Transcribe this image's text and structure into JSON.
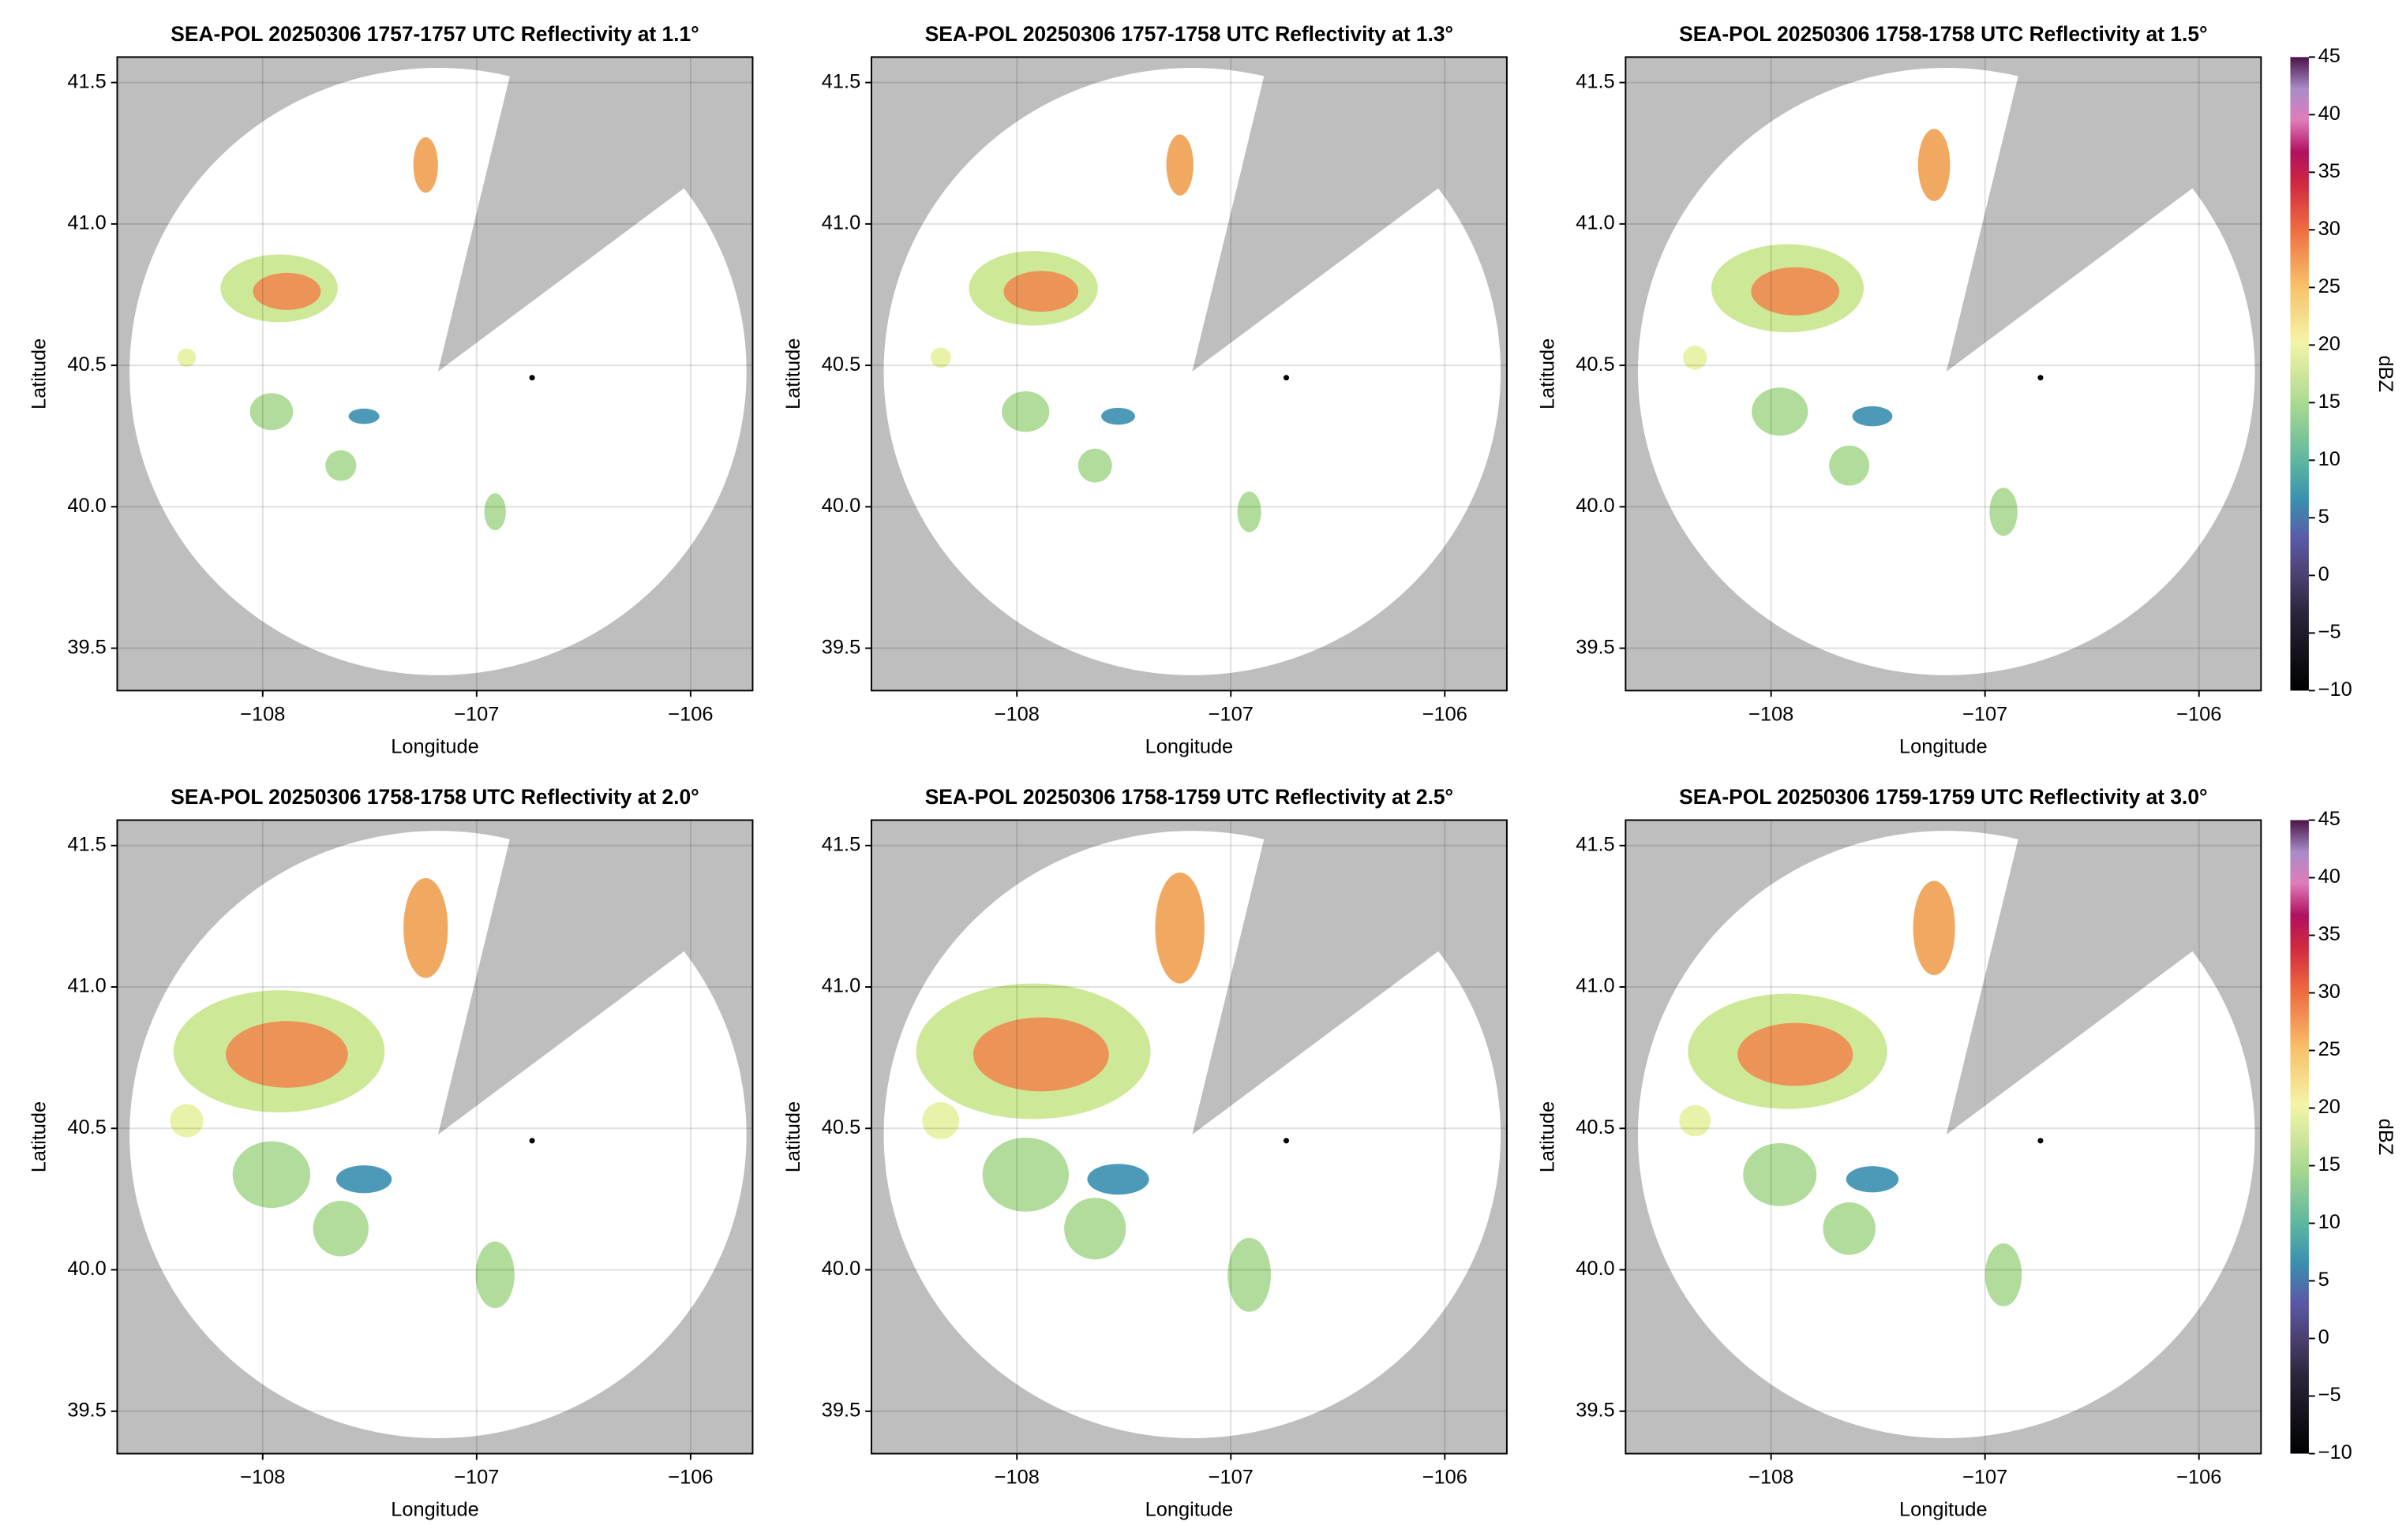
{
  "chart_data": [
    {
      "type": "ppi",
      "title": "SEA-POL 20250306 1757-1757 UTC Reflectivity at 1.1°",
      "xlabel": "Longitude",
      "ylabel": "Latitude",
      "xlim": [
        -108.68,
        -105.71
      ],
      "ylim": [
        39.35,
        41.59
      ],
      "xticks": [
        {
          "value": -108,
          "label": "−108"
        },
        {
          "value": -107,
          "label": "−107"
        },
        {
          "value": -106,
          "label": "−106"
        }
      ],
      "yticks": [
        39.5,
        {
          "value": 40,
          "label": "40.0"
        },
        40.5,
        {
          "value": 41,
          "label": "41.0"
        },
        41.5
      ],
      "grid": true
    },
    {
      "type": "ppi",
      "title": "SEA-POL 20250306 1757-1758 UTC Reflectivity at 1.3°",
      "xlabel": "Longitude",
      "ylabel": "Latitude",
      "xlim": [
        -108.68,
        -105.71
      ],
      "ylim": [
        39.35,
        41.59
      ],
      "xticks": [
        {
          "value": -108,
          "label": "−108"
        },
        {
          "value": -107,
          "label": "−107"
        },
        {
          "value": -106,
          "label": "−106"
        }
      ],
      "yticks": [
        39.5,
        {
          "value": 40,
          "label": "40.0"
        },
        40.5,
        {
          "value": 41,
          "label": "41.0"
        },
        41.5
      ],
      "grid": true
    },
    {
      "type": "ppi",
      "title": "SEA-POL 20250306 1758-1758 UTC Reflectivity at 1.5°",
      "xlabel": "Longitude",
      "ylabel": "Latitude",
      "xlim": [
        -108.68,
        -105.71
      ],
      "ylim": [
        39.35,
        41.59
      ],
      "xticks": [
        {
          "value": -108,
          "label": "−108"
        },
        {
          "value": -107,
          "label": "−107"
        },
        {
          "value": -106,
          "label": "−106"
        }
      ],
      "yticks": [
        39.5,
        {
          "value": 40,
          "label": "40.0"
        },
        40.5,
        {
          "value": 41,
          "label": "41.0"
        },
        41.5
      ],
      "grid": true,
      "colorbar": {
        "label": "dBZ",
        "lim": [
          -10,
          45
        ],
        "ticks": [
          {
            "value": -10,
            "label": "−10"
          },
          {
            "value": -5,
            "label": "−5"
          },
          0,
          5,
          10,
          15,
          20,
          25,
          30,
          35,
          40,
          45
        ]
      }
    },
    {
      "type": "ppi",
      "title": "SEA-POL 20250306 1758-1758 UTC Reflectivity at 2.0°",
      "xlabel": "Longitude",
      "ylabel": "Latitude",
      "xlim": [
        -108.68,
        -105.71
      ],
      "ylim": [
        39.35,
        41.59
      ],
      "xticks": [
        {
          "value": -108,
          "label": "−108"
        },
        {
          "value": -107,
          "label": "−107"
        },
        {
          "value": -106,
          "label": "−106"
        }
      ],
      "yticks": [
        39.5,
        {
          "value": 40,
          "label": "40.0"
        },
        40.5,
        {
          "value": 41,
          "label": "41.0"
        },
        41.5
      ],
      "grid": true
    },
    {
      "type": "ppi",
      "title": "SEA-POL 20250306 1758-1759 UTC Reflectivity at 2.5°",
      "xlabel": "Longitude",
      "ylabel": "Latitude",
      "xlim": [
        -108.68,
        -105.71
      ],
      "ylim": [
        39.35,
        41.59
      ],
      "xticks": [
        {
          "value": -108,
          "label": "−108"
        },
        {
          "value": -107,
          "label": "−107"
        },
        {
          "value": -106,
          "label": "−106"
        }
      ],
      "yticks": [
        39.5,
        {
          "value": 40,
          "label": "40.0"
        },
        40.5,
        {
          "value": 41,
          "label": "41.0"
        },
        41.5
      ],
      "grid": true
    },
    {
      "type": "ppi",
      "title": "SEA-POL 20250306 1759-1759 UTC Reflectivity at 3.0°",
      "xlabel": "Longitude",
      "ylabel": "Latitude",
      "xlim": [
        -108.68,
        -105.71
      ],
      "ylim": [
        39.35,
        41.59
      ],
      "xticks": [
        {
          "value": -108,
          "label": "−108"
        },
        {
          "value": -107,
          "label": "−107"
        },
        {
          "value": -106,
          "label": "−106"
        }
      ],
      "yticks": [
        39.5,
        {
          "value": 40,
          "label": "40.0"
        },
        40.5,
        {
          "value": 41,
          "label": "41.0"
        },
        41.5
      ],
      "grid": true,
      "colorbar": {
        "label": "dBZ",
        "lim": [
          -10,
          45
        ],
        "ticks": [
          {
            "value": -10,
            "label": "−10"
          },
          {
            "value": -5,
            "label": "−5"
          },
          0,
          5,
          10,
          15,
          20,
          25,
          30,
          35,
          40,
          45
        ]
      }
    }
  ]
}
